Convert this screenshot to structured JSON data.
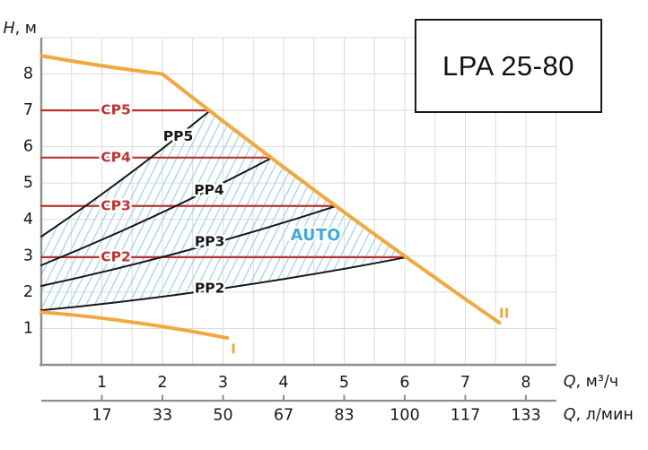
{
  "title_box": {
    "label": "LPA 25-80"
  },
  "colors": {
    "limit_curves": "#F2A83E",
    "cp_lines": "#BE332D",
    "pp_lines": "#161616",
    "hatch": "#A3D6F0",
    "auto_label": "#41A8E0",
    "grid": "#DBDBDB",
    "axis": "#8E8E8E",
    "text": "#1A1A1A"
  },
  "chart_data": {
    "type": "line",
    "title": "LPA 25-80",
    "x_axis": {
      "label": "Q, м³/ч",
      "ticks": [
        1,
        2,
        3,
        4,
        5,
        6,
        7,
        8
      ],
      "range": [
        0,
        8.5
      ],
      "grid_step": 0.5
    },
    "x_axis_secondary": {
      "label": "Q, л/мин",
      "tick_labels": [
        "17",
        "33",
        "50",
        "67",
        "83",
        "100",
        "117",
        "133"
      ],
      "ticks_at": [
        1,
        2,
        3,
        4,
        5,
        6,
        7,
        8
      ]
    },
    "y_axis": {
      "label": "H, м",
      "ticks": [
        1,
        2,
        3,
        4,
        5,
        6,
        7,
        8
      ],
      "range": [
        0,
        9
      ],
      "grid_step": 1
    },
    "series": [
      {
        "name": "max-curve",
        "label": "II",
        "kind": "limit",
        "points": [
          [
            0,
            8.5
          ],
          [
            2,
            8.0
          ],
          [
            7.56,
            1.16
          ]
        ],
        "label_at": [
          7.64,
          1.4
        ]
      },
      {
        "name": "min-curve",
        "label": "I",
        "kind": "limit",
        "points": [
          [
            0,
            1.45
          ],
          [
            3.07,
            0.74
          ]
        ],
        "label_at": [
          3.17,
          0.42
        ]
      },
      {
        "name": "cp5",
        "label": "CP5",
        "kind": "constant-pressure",
        "points": [
          [
            0,
            7.0
          ],
          [
            2.79,
            7.0
          ]
        ],
        "label_at": [
          1.23,
          7.0
        ]
      },
      {
        "name": "cp4",
        "label": "CP4",
        "kind": "constant-pressure",
        "points": [
          [
            0,
            5.7
          ],
          [
            3.81,
            5.7
          ]
        ],
        "label_at": [
          1.23,
          5.7
        ]
      },
      {
        "name": "cp3",
        "label": "CP3",
        "kind": "constant-pressure",
        "points": [
          [
            0,
            4.37
          ],
          [
            4.87,
            4.37
          ]
        ],
        "label_at": [
          1.23,
          4.37
        ]
      },
      {
        "name": "cp2",
        "label": "CP2",
        "kind": "constant-pressure",
        "points": [
          [
            0,
            2.96
          ],
          [
            6.03,
            2.96
          ]
        ],
        "label_at": [
          1.23,
          2.96
        ]
      },
      {
        "name": "pp5",
        "label": "PP5",
        "kind": "proportional-pressure",
        "points": [
          [
            0,
            3.53
          ],
          [
            2.79,
            7.0
          ]
        ],
        "label_at": [
          2.26,
          6.28
        ]
      },
      {
        "name": "pp4",
        "label": "PP4",
        "kind": "proportional-pressure",
        "points": [
          [
            0,
            2.74
          ],
          [
            3.81,
            5.7
          ]
        ],
        "label_at": [
          2.77,
          4.79
        ]
      },
      {
        "name": "pp3",
        "label": "PP3",
        "kind": "proportional-pressure",
        "points": [
          [
            0,
            2.17
          ],
          [
            4.87,
            4.37
          ]
        ],
        "label_at": [
          2.78,
          3.38
        ]
      },
      {
        "name": "pp2",
        "label": "PP2",
        "kind": "proportional-pressure",
        "points": [
          [
            0,
            1.5
          ],
          [
            6.03,
            2.96
          ]
        ],
        "label_at": [
          2.78,
          2.1
        ]
      }
    ],
    "auto_region": {
      "label": "AUTO",
      "label_at": [
        4.53,
        3.55
      ],
      "boundary": "left: y-axis between pp2 and pp5 starts; top: pp5 curve; right: max-curve between cp5 and cp2 tips; bottom: pp2 curve"
    },
    "legend_position": "none",
    "grid": true
  }
}
